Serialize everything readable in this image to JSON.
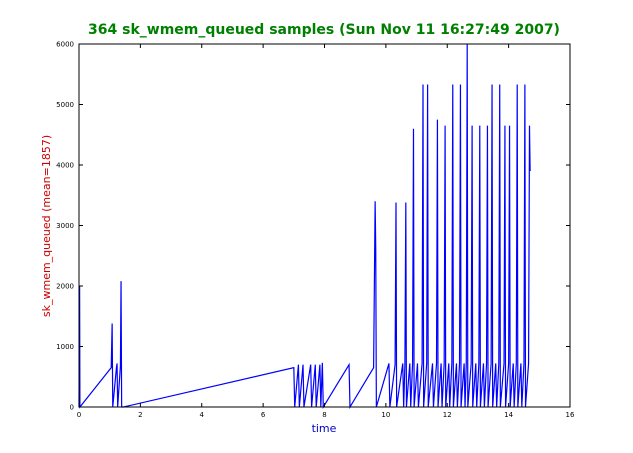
{
  "chart_data": {
    "type": "line",
    "title": "364 sk_wmem_queued samples (Sun Nov 11 16:27:49 2007)",
    "xlabel": "time",
    "ylabel": "sk_wmem_queued (mean=1857)",
    "xlim": [
      0,
      16
    ],
    "ylim": [
      0,
      6000
    ],
    "xticks": [
      0,
      2,
      4,
      6,
      8,
      10,
      12,
      14,
      16
    ],
    "yticks": [
      0,
      1000,
      2000,
      3000,
      4000,
      5000,
      6000
    ],
    "grid": false,
    "colors": {
      "title": "#008000",
      "xlabel": "#0000cc",
      "ylabel": "#cc0000",
      "line": "#0000ff"
    },
    "series": [
      {
        "values": [
          [
            0.0,
            0
          ],
          [
            0.02,
            2000
          ],
          [
            0.03,
            0
          ],
          [
            1.05,
            650
          ],
          [
            1.08,
            1380
          ],
          [
            1.1,
            0
          ],
          [
            1.22,
            650
          ],
          [
            1.24,
            720
          ],
          [
            1.26,
            0
          ],
          [
            1.35,
            680
          ],
          [
            1.37,
            2080
          ],
          [
            1.39,
            0
          ],
          [
            1.45,
            0
          ],
          [
            7.0,
            650
          ],
          [
            7.03,
            0
          ],
          [
            7.15,
            700
          ],
          [
            7.18,
            0
          ],
          [
            7.3,
            700
          ],
          [
            7.33,
            0
          ],
          [
            7.55,
            700
          ],
          [
            7.58,
            0
          ],
          [
            7.7,
            700
          ],
          [
            7.73,
            0
          ],
          [
            7.85,
            700
          ],
          [
            7.88,
            0
          ],
          [
            7.93,
            730
          ],
          [
            7.96,
            0
          ],
          [
            8.8,
            700
          ],
          [
            8.83,
            0
          ],
          [
            9.6,
            650
          ],
          [
            9.65,
            3400
          ],
          [
            9.67,
            2600
          ],
          [
            9.69,
            0
          ],
          [
            10.1,
            720
          ],
          [
            10.13,
            0
          ],
          [
            10.3,
            700
          ],
          [
            10.33,
            3380
          ],
          [
            10.35,
            0
          ],
          [
            10.55,
            720
          ],
          [
            10.58,
            0
          ],
          [
            10.62,
            700
          ],
          [
            10.65,
            3380
          ],
          [
            10.67,
            0
          ],
          [
            10.78,
            720
          ],
          [
            10.81,
            0
          ],
          [
            10.87,
            720
          ],
          [
            10.9,
            4600
          ],
          [
            10.92,
            0
          ],
          [
            11.03,
            720
          ],
          [
            11.06,
            0
          ],
          [
            11.18,
            720
          ],
          [
            11.21,
            5330
          ],
          [
            11.23,
            0
          ],
          [
            11.33,
            720
          ],
          [
            11.36,
            5330
          ],
          [
            11.38,
            0
          ],
          [
            11.52,
            720
          ],
          [
            11.55,
            0
          ],
          [
            11.65,
            720
          ],
          [
            11.68,
            4750
          ],
          [
            11.7,
            0
          ],
          [
            11.8,
            720
          ],
          [
            11.83,
            0
          ],
          [
            11.9,
            720
          ],
          [
            11.93,
            4650
          ],
          [
            11.95,
            0
          ],
          [
            12.05,
            720
          ],
          [
            12.08,
            0
          ],
          [
            12.15,
            720
          ],
          [
            12.18,
            5330
          ],
          [
            12.2,
            0
          ],
          [
            12.3,
            720
          ],
          [
            12.33,
            0
          ],
          [
            12.4,
            720
          ],
          [
            12.43,
            5330
          ],
          [
            12.45,
            0
          ],
          [
            12.55,
            720
          ],
          [
            12.58,
            0
          ],
          [
            12.62,
            720
          ],
          [
            12.65,
            6000
          ],
          [
            12.67,
            0
          ],
          [
            12.78,
            720
          ],
          [
            12.81,
            4650
          ],
          [
            12.83,
            0
          ],
          [
            12.93,
            720
          ],
          [
            12.96,
            0
          ],
          [
            13.03,
            720
          ],
          [
            13.06,
            4650
          ],
          [
            13.08,
            0
          ],
          [
            13.18,
            720
          ],
          [
            13.21,
            0
          ],
          [
            13.28,
            720
          ],
          [
            13.31,
            4650
          ],
          [
            13.33,
            0
          ],
          [
            13.43,
            720
          ],
          [
            13.46,
            5330
          ],
          [
            13.48,
            0
          ],
          [
            13.58,
            720
          ],
          [
            13.61,
            0
          ],
          [
            13.68,
            720
          ],
          [
            13.71,
            5330
          ],
          [
            13.73,
            0
          ],
          [
            13.85,
            720
          ],
          [
            13.88,
            4650
          ],
          [
            13.9,
            0
          ],
          [
            14.0,
            720
          ],
          [
            14.03,
            4650
          ],
          [
            14.05,
            0
          ],
          [
            14.15,
            720
          ],
          [
            14.18,
            0
          ],
          [
            14.25,
            720
          ],
          [
            14.28,
            5330
          ],
          [
            14.3,
            0
          ],
          [
            14.4,
            720
          ],
          [
            14.43,
            0
          ],
          [
            14.5,
            720
          ],
          [
            14.53,
            5330
          ],
          [
            14.55,
            0
          ],
          [
            14.65,
            720
          ],
          [
            14.68,
            4650
          ],
          [
            14.7,
            3900
          ]
        ]
      }
    ]
  }
}
